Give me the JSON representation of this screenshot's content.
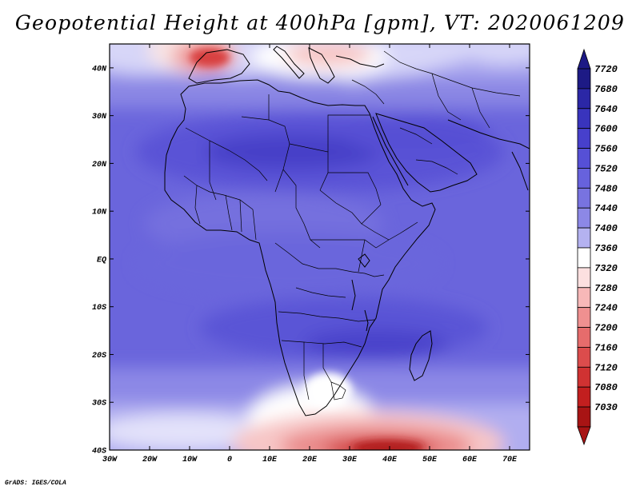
{
  "title": "Geopotential Height at 400hPa [gpm], VT: 2020061209",
  "credit": "GrADS: IGES/COLA",
  "map": {
    "lon_range": [
      -30,
      75
    ],
    "lat_range": [
      -40,
      45
    ],
    "lon_ticks": [
      "30W",
      "20W",
      "10W",
      "0",
      "10E",
      "20E",
      "30E",
      "40E",
      "50E",
      "60E",
      "70E"
    ],
    "lat_ticks": [
      "40N",
      "30N",
      "20N",
      "10N",
      "EQ",
      "10S",
      "20S",
      "30S",
      "40S"
    ]
  },
  "colorbar": {
    "labels": [
      "7720",
      "7680",
      "7640",
      "7600",
      "7560",
      "7520",
      "7480",
      "7440",
      "7400",
      "7360",
      "7320",
      "7280",
      "7240",
      "7200",
      "7160",
      "7120",
      "7080",
      "7030"
    ],
    "colors": [
      "#1d1a85",
      "#2b27a6",
      "#3934bd",
      "#4740cc",
      "#5650d6",
      "#6762dd",
      "#7873e0",
      "#8c88e6",
      "#b4b2f0",
      "#ffffff",
      "#fce0e0",
      "#f7b8b8",
      "#ef9090",
      "#e66c6c",
      "#dc4c4c",
      "#d03232",
      "#c21f1f",
      "#a81414"
    ]
  }
}
